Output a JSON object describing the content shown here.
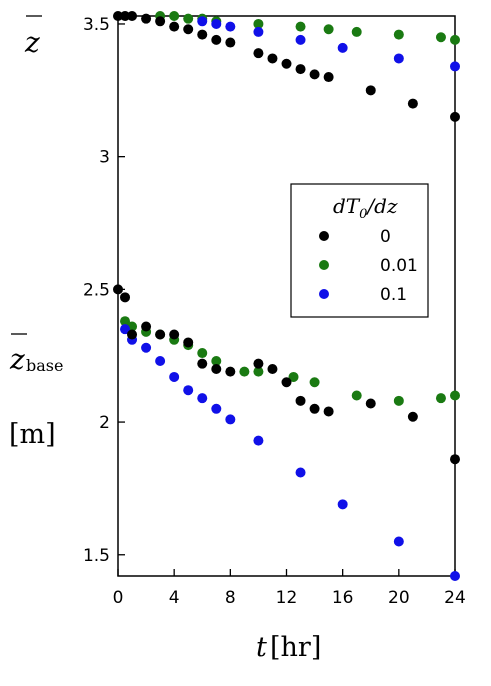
{
  "chart_data": {
    "type": "scatter",
    "xlabel_var": "t",
    "xlabel_unit": "[hr]",
    "ylabel_top_var": "z",
    "ylabel_mid_var": "z",
    "ylabel_mid_sub": "base",
    "ylabel_unit": "[m]",
    "xlim": [
      0,
      24
    ],
    "ylim": [
      1.42,
      3.53
    ],
    "x_ticks": [
      "0",
      "4",
      "8",
      "12",
      "16",
      "20",
      "24"
    ],
    "y_ticks": [
      "1.5",
      "2",
      "2.5",
      "3",
      "3.5"
    ],
    "x_tick_values": [
      0,
      4,
      8,
      12,
      16,
      20,
      24
    ],
    "y_tick_values": [
      1.5,
      2,
      2.5,
      3,
      3.5
    ],
    "grid": false,
    "legend": {
      "position": "right-middle",
      "title_parts": [
        "dT",
        "0",
        "/dz"
      ]
    },
    "series": [
      {
        "name": "0",
        "color": "#000000",
        "points": [
          [
            0,
            3.53
          ],
          [
            0.5,
            3.53
          ],
          [
            1,
            3.53
          ],
          [
            2,
            3.52
          ],
          [
            3,
            3.51
          ],
          [
            4,
            3.49
          ],
          [
            5,
            3.48
          ],
          [
            6,
            3.46
          ],
          [
            7,
            3.44
          ],
          [
            8,
            3.43
          ],
          [
            10,
            3.39
          ],
          [
            11,
            3.37
          ],
          [
            12,
            3.35
          ],
          [
            13,
            3.33
          ],
          [
            14,
            3.31
          ],
          [
            15,
            3.3
          ],
          [
            18,
            3.25
          ],
          [
            21,
            3.2
          ],
          [
            24,
            3.15
          ],
          [
            0,
            2.5
          ],
          [
            0.5,
            2.47
          ],
          [
            1,
            2.33
          ],
          [
            2,
            2.36
          ],
          [
            3,
            2.33
          ],
          [
            4,
            2.33
          ],
          [
            5,
            2.3
          ],
          [
            6,
            2.22
          ],
          [
            7,
            2.2
          ],
          [
            8,
            2.19
          ],
          [
            10,
            2.22
          ],
          [
            11,
            2.2
          ],
          [
            12,
            2.15
          ],
          [
            13,
            2.08
          ],
          [
            14,
            2.05
          ],
          [
            15,
            2.04
          ],
          [
            18,
            2.07
          ],
          [
            21,
            2.02
          ],
          [
            24,
            1.86
          ]
        ]
      },
      {
        "name": "0.01",
        "color": "#1a7a12",
        "points": [
          [
            3,
            3.53
          ],
          [
            4,
            3.53
          ],
          [
            5,
            3.52
          ],
          [
            6,
            3.52
          ],
          [
            7,
            3.51
          ],
          [
            10,
            3.5
          ],
          [
            13,
            3.49
          ],
          [
            15,
            3.48
          ],
          [
            17,
            3.47
          ],
          [
            20,
            3.46
          ],
          [
            23,
            3.45
          ],
          [
            24,
            3.44
          ],
          [
            0.5,
            2.38
          ],
          [
            1,
            2.36
          ],
          [
            2,
            2.34
          ],
          [
            3,
            2.33
          ],
          [
            4,
            2.31
          ],
          [
            5,
            2.29
          ],
          [
            6,
            2.26
          ],
          [
            7,
            2.23
          ],
          [
            9,
            2.19
          ],
          [
            10,
            2.19
          ],
          [
            12.5,
            2.17
          ],
          [
            14,
            2.15
          ],
          [
            17,
            2.1
          ],
          [
            20,
            2.08
          ],
          [
            23,
            2.09
          ],
          [
            24,
            2.1
          ]
        ]
      },
      {
        "name": "0.1",
        "color": "#1010e8",
        "points": [
          [
            6,
            3.51
          ],
          [
            7,
            3.5
          ],
          [
            8,
            3.49
          ],
          [
            10,
            3.47
          ],
          [
            13,
            3.44
          ],
          [
            16,
            3.41
          ],
          [
            20,
            3.37
          ],
          [
            24,
            3.34
          ],
          [
            0.5,
            2.35
          ],
          [
            1,
            2.31
          ],
          [
            2,
            2.28
          ],
          [
            3,
            2.23
          ],
          [
            4,
            2.17
          ],
          [
            5,
            2.12
          ],
          [
            6,
            2.09
          ],
          [
            7,
            2.05
          ],
          [
            8,
            2.01
          ],
          [
            10,
            1.93
          ],
          [
            13,
            1.81
          ],
          [
            16,
            1.69
          ],
          [
            20,
            1.55
          ],
          [
            24,
            1.42
          ]
        ]
      }
    ]
  }
}
